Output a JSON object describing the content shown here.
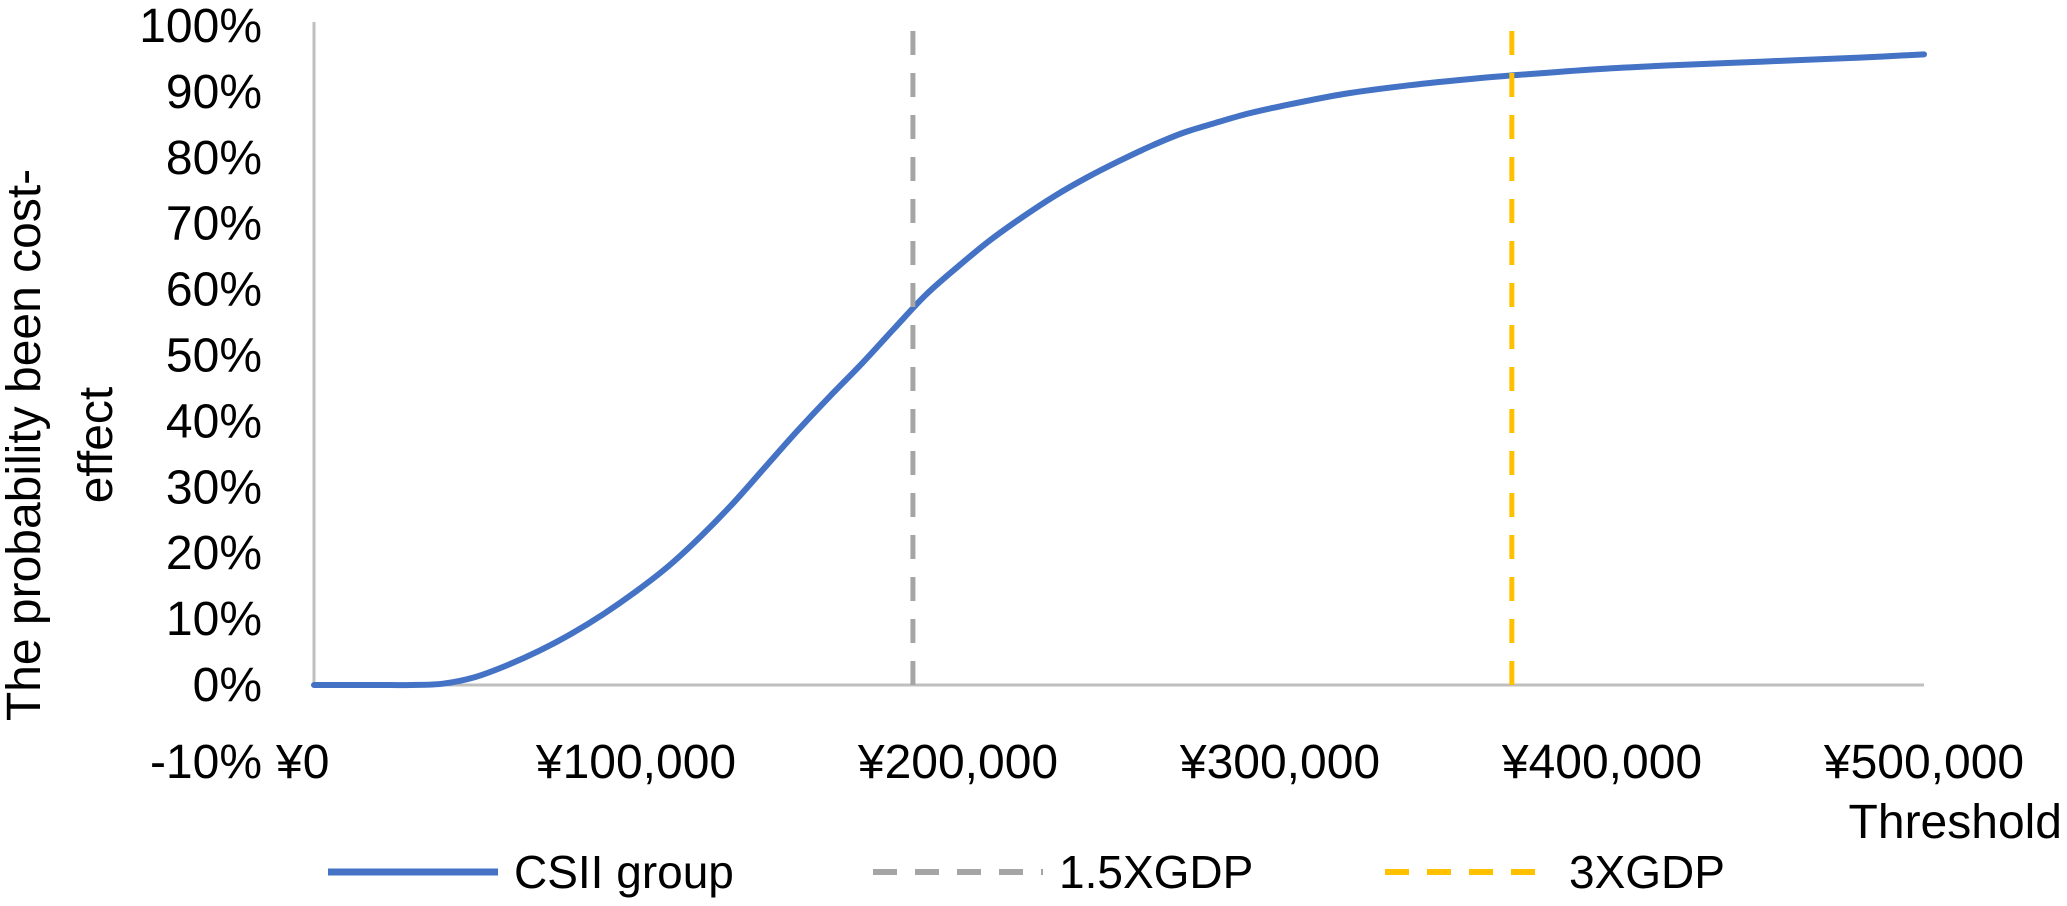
{
  "chart_data": {
    "type": "line",
    "title": "",
    "xlabel": "Threshold",
    "ylabel_line1": "The probability been cost-",
    "ylabel_line2": "effect",
    "xlim": [
      0,
      500000
    ],
    "ylim": [
      -0.1,
      1.0
    ],
    "x_ticks": [
      0,
      100000,
      200000,
      300000,
      400000,
      500000
    ],
    "x_tick_labels": [
      "¥0",
      "¥100,000",
      "¥200,000",
      "¥300,000",
      "¥400,000",
      "¥500,000"
    ],
    "y_ticks": [
      -0.1,
      0,
      0.1,
      0.2,
      0.3,
      0.4,
      0.5,
      0.6,
      0.7,
      0.8,
      0.9,
      1.0
    ],
    "y_tick_labels": [
      "-10%",
      "0%",
      "10%",
      "20%",
      "30%",
      "40%",
      "50%",
      "60%",
      "70%",
      "80%",
      "90%",
      "100%"
    ],
    "grid": false,
    "legend_position": "bottom",
    "series": [
      {
        "name": "CSII group",
        "color": "#4472C4",
        "style": "solid",
        "x": [
          0,
          10000,
          20000,
          30000,
          40000,
          50000,
          60000,
          70000,
          80000,
          90000,
          100000,
          110000,
          120000,
          130000,
          140000,
          150000,
          160000,
          170000,
          180000,
          190000,
          200000,
          210000,
          220000,
          230000,
          240000,
          250000,
          260000,
          270000,
          280000,
          290000,
          300000,
          320000,
          340000,
          360000,
          380000,
          400000,
          420000,
          440000,
          460000,
          480000,
          500000
        ],
        "y": [
          0.0,
          0.0,
          0.0,
          0.0,
          0.002,
          0.012,
          0.03,
          0.052,
          0.078,
          0.108,
          0.142,
          0.18,
          0.225,
          0.275,
          0.33,
          0.385,
          0.437,
          0.487,
          0.54,
          0.592,
          0.635,
          0.675,
          0.71,
          0.742,
          0.77,
          0.795,
          0.818,
          0.838,
          0.853,
          0.867,
          0.878,
          0.897,
          0.91,
          0.92,
          0.928,
          0.935,
          0.94,
          0.944,
          0.948,
          0.952,
          0.957
        ]
      },
      {
        "name": "1.5XGDP",
        "color": "#A5A5A5",
        "style": "dashed",
        "x": [
          186000,
          186000
        ],
        "y": [
          0.0,
          1.0
        ]
      },
      {
        "name": "3XGDP",
        "color": "#FFC000",
        "style": "dashed",
        "x": [
          372000,
          372000
        ],
        "y": [
          0.0,
          1.0
        ]
      }
    ]
  }
}
